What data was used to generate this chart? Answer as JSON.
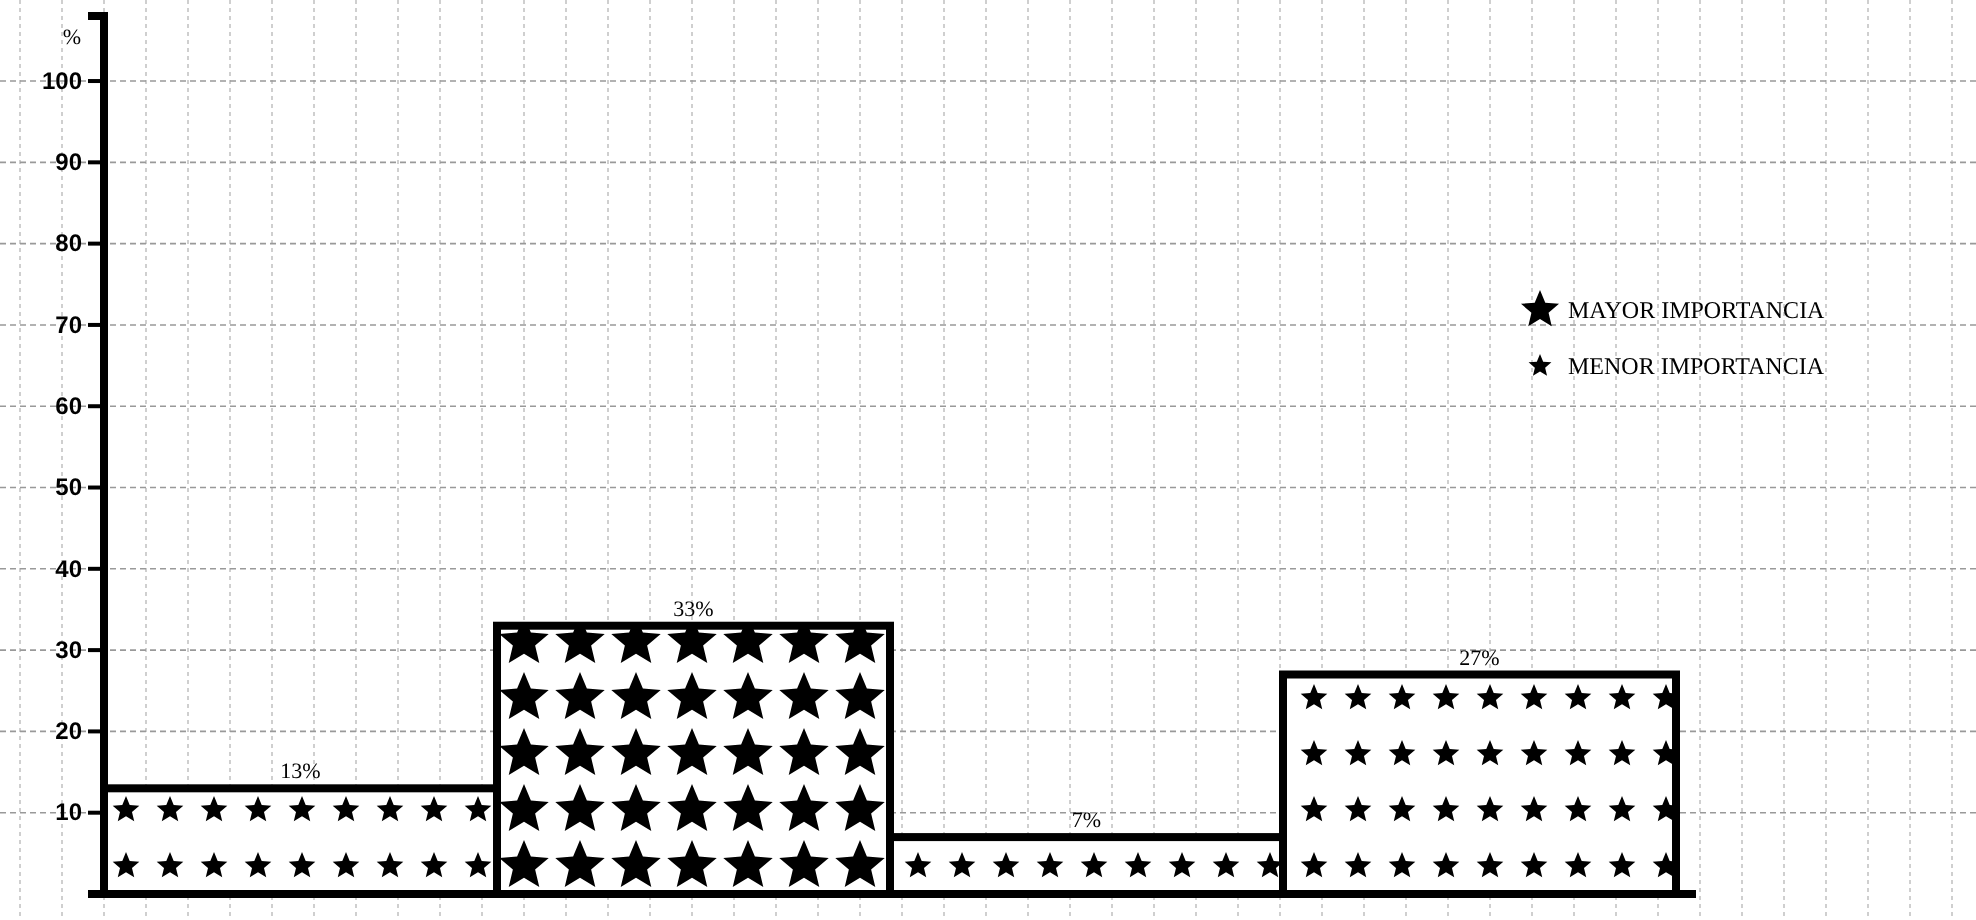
{
  "chart_data": {
    "type": "bar",
    "ylabel": "%",
    "categories": [
      null,
      null,
      null,
      null
    ],
    "series": [
      {
        "name": "MAYOR IMPORTANCIA",
        "color": "#000000",
        "values": [
          null,
          33,
          null,
          null
        ],
        "value_labels": [
          null,
          "33%",
          null,
          null
        ]
      },
      {
        "name": "MENOR IMPORTANCIA",
        "color": "#000000",
        "values": [
          13,
          null,
          7,
          27
        ],
        "value_labels": [
          "13%",
          null,
          "7%",
          "27%"
        ]
      }
    ],
    "stacked": true,
    "ylim": [
      0,
      108
    ],
    "yticks": [
      10,
      20,
      30,
      40,
      50,
      60,
      70,
      80,
      90,
      100
    ],
    "grid": "y",
    "legend": "right"
  }
}
